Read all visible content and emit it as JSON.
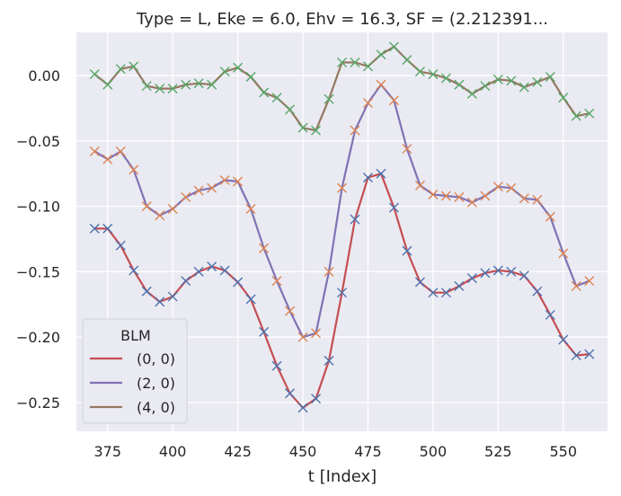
{
  "chart_data": {
    "type": "line",
    "title": "Type = L, Eke = 6.0, Ehv = 16.3, SF = (2.212391...",
    "xlabel": "t [Index]",
    "ylabel": "",
    "xlim": [
      363,
      567
    ],
    "ylim": [
      -0.272,
      0.033
    ],
    "xticks": [
      375,
      400,
      425,
      450,
      475,
      500,
      525,
      550
    ],
    "yticks": [
      0.0,
      -0.05,
      -0.1,
      -0.15,
      -0.2,
      -0.25
    ],
    "ytick_labels": [
      "0.00",
      "−0.05",
      "−0.10",
      "−0.15",
      "−0.20",
      "−0.25"
    ],
    "grid": true,
    "background": "#eaeaf2",
    "legend": {
      "title": "BLM",
      "placement": "lower-left"
    },
    "x": [
      370,
      375,
      380,
      385,
      390,
      395,
      400,
      405,
      410,
      415,
      420,
      425,
      430,
      435,
      440,
      445,
      450,
      455,
      460,
      465,
      470,
      475,
      480,
      485,
      490,
      495,
      500,
      505,
      510,
      515,
      520,
      525,
      530,
      535,
      540,
      545,
      550,
      555,
      560
    ],
    "series": [
      {
        "name": "(0, 0)",
        "color": "#c44e52",
        "marker_color": "#4c72b0",
        "values": [
          -0.117,
          -0.117,
          -0.13,
          -0.149,
          -0.165,
          -0.173,
          -0.169,
          -0.157,
          -0.15,
          -0.146,
          -0.149,
          -0.158,
          -0.171,
          -0.196,
          -0.222,
          -0.243,
          -0.254,
          -0.247,
          -0.218,
          -0.166,
          -0.11,
          -0.078,
          -0.075,
          -0.101,
          -0.134,
          -0.158,
          -0.166,
          -0.166,
          -0.161,
          -0.155,
          -0.151,
          -0.149,
          -0.15,
          -0.153,
          -0.165,
          -0.183,
          -0.202,
          -0.214,
          -0.213
        ]
      },
      {
        "name": "(2, 0)",
        "color": "#8172b3",
        "marker_color": "#dd8452",
        "values": [
          -0.058,
          -0.064,
          -0.058,
          -0.072,
          -0.1,
          -0.107,
          -0.102,
          -0.093,
          -0.088,
          -0.086,
          -0.08,
          -0.081,
          -0.102,
          -0.132,
          -0.157,
          -0.18,
          -0.2,
          -0.197,
          -0.15,
          -0.086,
          -0.042,
          -0.021,
          -0.007,
          -0.019,
          -0.056,
          -0.084,
          -0.091,
          -0.092,
          -0.093,
          -0.097,
          -0.092,
          -0.085,
          -0.086,
          -0.094,
          -0.095,
          -0.108,
          -0.136,
          -0.161,
          -0.157
        ]
      },
      {
        "name": "(4, 0)",
        "color": "#937860",
        "marker_color": "#55a868",
        "values": [
          0.001,
          -0.007,
          0.005,
          0.007,
          -0.008,
          -0.01,
          -0.01,
          -0.007,
          -0.006,
          -0.007,
          0.003,
          0.006,
          -0.001,
          -0.013,
          -0.017,
          -0.026,
          -0.04,
          -0.042,
          -0.018,
          0.01,
          0.01,
          0.007,
          0.016,
          0.022,
          0.012,
          0.003,
          0.001,
          -0.002,
          -0.007,
          -0.014,
          -0.008,
          -0.003,
          -0.004,
          -0.009,
          -0.005,
          -0.001,
          -0.017,
          -0.031,
          -0.029
        ]
      }
    ]
  }
}
